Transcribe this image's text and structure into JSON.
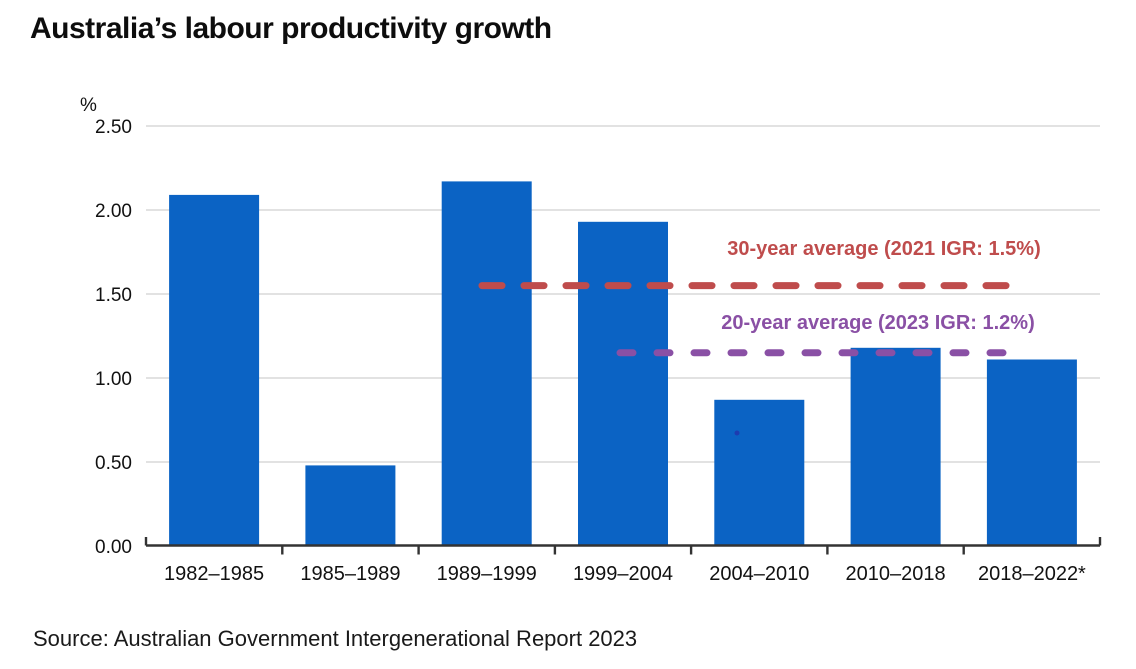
{
  "page": {
    "title": "Australia’s labour productivity growth",
    "source": "Source: Australian Government Intergenerational Report 2023",
    "background": "#ffffff",
    "stray_mark_color": "#1d3cb0"
  },
  "chart_data": {
    "type": "bar",
    "title": "Australia’s labour productivity growth",
    "ylabel": "%",
    "xlabel": "",
    "ylim": [
      0,
      2.5
    ],
    "ytick_step": 0.5,
    "yticks": [
      "0.00",
      "0.50",
      "1.00",
      "1.50",
      "2.00",
      "2.50"
    ],
    "grid": true,
    "legend": "none",
    "categories": [
      "1982–1985",
      "1985–1989",
      "1989–1999",
      "1999–2004",
      "2004–2010",
      "2010–2018",
      "2018–2022*"
    ],
    "values": [
      2.09,
      0.48,
      2.17,
      1.93,
      0.87,
      1.18,
      1.11
    ],
    "bar_color": "#0b63c4",
    "axis_color": "#333333",
    "gridline_color": "#d9d9d9",
    "reference_lines": [
      {
        "name": "30-year-average",
        "label": "30-year average (2021 IGR: 1.5%)",
        "stated_value_pct": 1.5,
        "plotted_at": 1.55,
        "color": "#bf4c4c",
        "style": "dashed"
      },
      {
        "name": "20-year-average",
        "label": "20-year average (2023 IGR: 1.2%)",
        "stated_value_pct": 1.2,
        "plotted_at": 1.15,
        "color": "#8a50a5",
        "style": "dashed"
      }
    ]
  }
}
